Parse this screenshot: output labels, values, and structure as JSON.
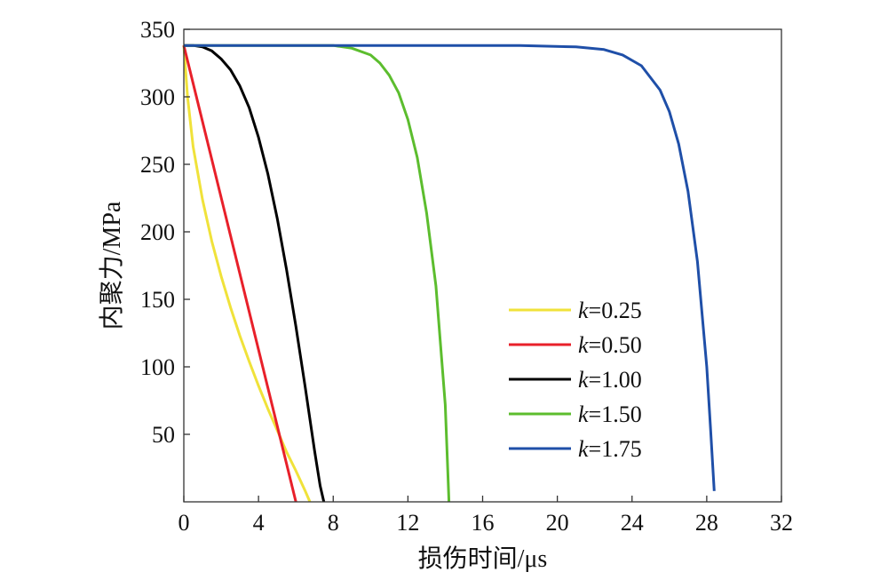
{
  "chart_data": {
    "type": "line",
    "title": "",
    "xlabel": "损伤时间/μs",
    "ylabel": "内聚力/MPa",
    "xlim": [
      0,
      32
    ],
    "ylim": [
      0,
      350
    ],
    "xticks": [
      0,
      4,
      8,
      12,
      16,
      20,
      24,
      28,
      32
    ],
    "yticks": [
      50,
      100,
      150,
      200,
      250,
      300,
      350
    ],
    "grid": false,
    "legend_position": "right",
    "peak_value": 338,
    "series": [
      {
        "name": "k=0.25",
        "legend_prefix": "k",
        "legend_value": "=0.25",
        "color": "#f0e23a",
        "x": [
          0,
          0.2,
          0.5,
          1.0,
          1.5,
          2.0,
          2.5,
          3.0,
          3.5,
          4.0,
          4.5,
          5.0,
          5.5,
          6.0,
          6.5,
          6.75
        ],
        "y": [
          338,
          300,
          263,
          224,
          193,
          167,
          144,
          123,
          104,
          86,
          69,
          53,
          37,
          23,
          8,
          0
        ]
      },
      {
        "name": "k=0.50",
        "legend_prefix": "k",
        "legend_value": "=0.50",
        "color": "#e8202a",
        "x": [
          0,
          6.0
        ],
        "y": [
          338,
          0
        ]
      },
      {
        "name": "k=1.00",
        "legend_prefix": "k",
        "legend_value": "=1.00",
        "color": "#000000",
        "x": [
          0,
          0.5,
          1.0,
          1.5,
          2.0,
          2.5,
          3.0,
          3.5,
          4.0,
          4.5,
          5.0,
          5.5,
          6.0,
          6.5,
          7.0,
          7.3,
          7.5
        ],
        "y": [
          338,
          338,
          337,
          334,
          328,
          320,
          308,
          292,
          270,
          243,
          210,
          172,
          130,
          85,
          38,
          12,
          0
        ]
      },
      {
        "name": "k=1.50",
        "legend_prefix": "k",
        "legend_value": "=1.50",
        "color": "#5cbd2e",
        "x": [
          0,
          6,
          8,
          9,
          10,
          10.5,
          11,
          11.5,
          12,
          12.5,
          13,
          13.5,
          14,
          14.2
        ],
        "y": [
          338,
          338,
          338,
          336,
          331,
          325,
          316,
          303,
          283,
          255,
          214,
          160,
          72,
          0
        ]
      },
      {
        "name": "k=1.75",
        "legend_prefix": "k",
        "legend_value": "=1.75",
        "color": "#1f4fa8",
        "x": [
          0,
          18,
          21,
          22.5,
          23.5,
          24.5,
          25.5,
          26,
          26.5,
          27,
          27.5,
          28,
          28.2,
          28.4
        ],
        "y": [
          338,
          338,
          337,
          335,
          331,
          323,
          305,
          289,
          265,
          230,
          178,
          100,
          55,
          8
        ]
      }
    ]
  }
}
